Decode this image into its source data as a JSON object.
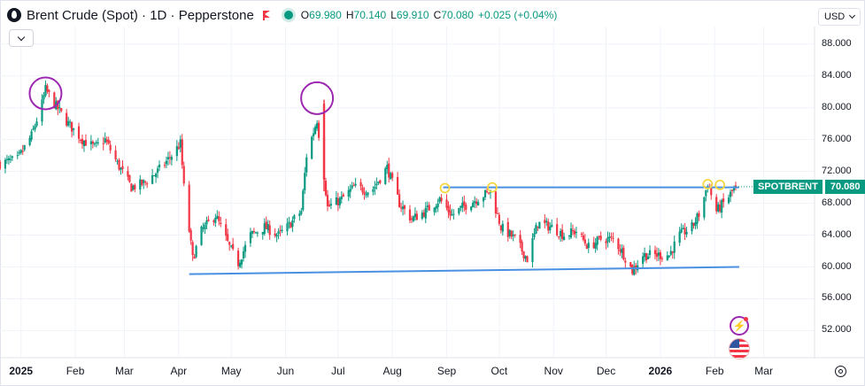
{
  "header": {
    "title": "Brent Crude (Spot) · 1D · Pepperstone",
    "ohlc": [
      {
        "label": "O",
        "value": "69.980"
      },
      {
        "label": "H",
        "value": "70.140"
      },
      {
        "label": "L",
        "value": "69.910"
      },
      {
        "label": "C",
        "value": "70.080"
      }
    ],
    "change": "+0.025 (+0.04%)"
  },
  "currency": "USD",
  "last_price": {
    "symbol": "SPOTBRENT",
    "value": "70.080"
  },
  "colors": {
    "up": "#089981",
    "down": "#f23645",
    "trendline": "#4a90e2",
    "circle": "#9c27b0",
    "marker": "#f5d742",
    "grid": "#f0f3fa"
  },
  "icons": {
    "bolt": "lightning-bolt-icon",
    "flag": "us-flag-icon",
    "settings": "gear-icon"
  },
  "chart_data": {
    "type": "candlestick",
    "y_axis": {
      "ticks": [
        "88.000",
        "84.000",
        "80.000",
        "76.000",
        "72.000",
        "68.000",
        "64.000",
        "60.000",
        "56.000",
        "52.000"
      ],
      "range": [
        48.6,
        90.2
      ]
    },
    "x_axis": {
      "ticks": [
        {
          "label": "2025",
          "date": "2025-01-01",
          "bold": true
        },
        {
          "label": "Feb",
          "date": "2025-02-01"
        },
        {
          "label": "Mar",
          "date": "2025-03-01"
        },
        {
          "label": "Apr",
          "date": "2025-04-01"
        },
        {
          "label": "May",
          "date": "2025-05-01"
        },
        {
          "label": "Jun",
          "date": "2025-06-01"
        },
        {
          "label": "Jul",
          "date": "2025-07-01"
        },
        {
          "label": "Aug",
          "date": "2025-08-01"
        },
        {
          "label": "Sep",
          "date": "2025-09-01"
        },
        {
          "label": "Oct",
          "date": "2025-10-01"
        },
        {
          "label": "Nov",
          "date": "2025-11-01"
        },
        {
          "label": "Dec",
          "date": "2025-12-01"
        },
        {
          "label": "2026",
          "date": "2026-01-01",
          "bold": true
        },
        {
          "label": "Feb",
          "date": "2026-02-01"
        },
        {
          "label": "Mar",
          "date": "2026-03-01"
        }
      ],
      "range": [
        "2024-12-20",
        "2026-03-30"
      ]
    },
    "close_path": [
      [
        "2024-12-20",
        73.0
      ],
      [
        "2024-12-30",
        73.5
      ],
      [
        "2025-01-07",
        76.5
      ],
      [
        "2025-01-13",
        80.5
      ],
      [
        "2025-01-15",
        82.3
      ],
      [
        "2025-01-20",
        80.5
      ],
      [
        "2025-01-28",
        78.0
      ],
      [
        "2025-02-05",
        76.0
      ],
      [
        "2025-02-12",
        75.0
      ],
      [
        "2025-02-18",
        76.0
      ],
      [
        "2025-02-25",
        73.0
      ],
      [
        "2025-03-05",
        70.0
      ],
      [
        "2025-03-12",
        70.5
      ],
      [
        "2025-03-20",
        72.0
      ],
      [
        "2025-03-28",
        74.0
      ],
      [
        "2025-04-02",
        75.5
      ],
      [
        "2025-04-04",
        70.0
      ],
      [
        "2025-04-09",
        61.0
      ],
      [
        "2025-04-14",
        64.5
      ],
      [
        "2025-04-22",
        66.5
      ],
      [
        "2025-04-30",
        62.5
      ],
      [
        "2025-05-05",
        60.5
      ],
      [
        "2025-05-12",
        64.0
      ],
      [
        "2025-05-20",
        65.0
      ],
      [
        "2025-05-28",
        64.0
      ],
      [
        "2025-06-02",
        65.0
      ],
      [
        "2025-06-10",
        67.0
      ],
      [
        "2025-06-13",
        74.0
      ],
      [
        "2025-06-19",
        78.5
      ],
      [
        "2025-06-23",
        71.5
      ],
      [
        "2025-06-25",
        67.5
      ],
      [
        "2025-07-03",
        68.5
      ],
      [
        "2025-07-10",
        70.0
      ],
      [
        "2025-07-20",
        69.5
      ],
      [
        "2025-07-29",
        72.5
      ],
      [
        "2025-08-05",
        68.0
      ],
      [
        "2025-08-12",
        66.0
      ],
      [
        "2025-08-20",
        67.0
      ],
      [
        "2025-08-28",
        68.5
      ],
      [
        "2025-09-04",
        66.5
      ],
      [
        "2025-09-10",
        67.5
      ],
      [
        "2025-09-18",
        68.5
      ],
      [
        "2025-09-26",
        69.5
      ],
      [
        "2025-10-02",
        65.0
      ],
      [
        "2025-10-10",
        63.5
      ],
      [
        "2025-10-17",
        61.0
      ],
      [
        "2025-10-23",
        65.5
      ],
      [
        "2025-10-31",
        65.0
      ],
      [
        "2025-11-07",
        64.0
      ],
      [
        "2025-11-14",
        64.5
      ],
      [
        "2025-11-21",
        62.5
      ],
      [
        "2025-11-28",
        63.5
      ],
      [
        "2025-12-05",
        63.5
      ],
      [
        "2025-12-10",
        62.0
      ],
      [
        "2025-12-16",
        59.5
      ],
      [
        "2025-12-22",
        61.5
      ],
      [
        "2025-12-29",
        61.5
      ],
      [
        "2026-01-06",
        61.5
      ],
      [
        "2026-01-12",
        64.0
      ],
      [
        "2026-01-19",
        65.0
      ],
      [
        "2026-01-24",
        67.0
      ],
      [
        "2026-01-28",
        70.5
      ],
      [
        "2026-02-02",
        67.0
      ],
      [
        "2026-02-08",
        68.5
      ],
      [
        "2026-02-13",
        70.08
      ]
    ],
    "last_value": 70.08,
    "annotations": {
      "resistance_line": {
        "from": [
          "2025-08-30",
          70.0
        ],
        "to": [
          "2026-02-15",
          70.0
        ]
      },
      "support_line": {
        "from": [
          "2025-04-07",
          59.1
        ],
        "to": [
          "2026-02-15",
          60.0
        ]
      },
      "circles": [
        [
          "2025-01-15",
          81.8
        ],
        [
          "2025-06-19",
          81.2
        ]
      ],
      "markers": [
        [
          "2025-08-31",
          69.9
        ],
        [
          "2025-09-27",
          70.0
        ],
        [
          "2026-01-28",
          70.4
        ],
        [
          "2026-02-04",
          70.3
        ]
      ]
    }
  }
}
